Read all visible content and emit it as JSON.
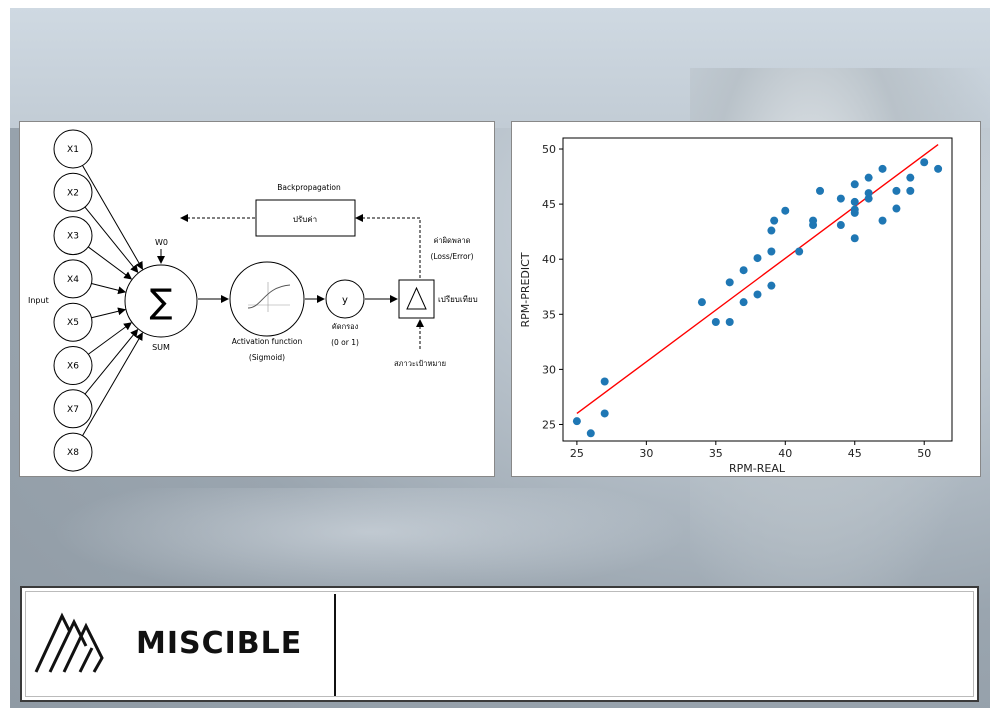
{
  "diagram": {
    "inputs": [
      "X1",
      "X2",
      "X3",
      "X4",
      "X5",
      "X6",
      "X7",
      "X8"
    ],
    "input_label": "Input",
    "bias_label": "W0",
    "sum_symbol": "∑",
    "sum_label": "SUM",
    "activation_label": "Activation function",
    "activation_sub": "(Sigmoid)",
    "output_symbol": "y",
    "output_label": "คัดกรอง",
    "output_sub": "(0 or 1)",
    "compare_label": "เปรียบเทียบ",
    "target_label": "สภาวะเป้าหมาย",
    "error_label": "ค่าผิดพลาด",
    "error_sub": "(Loss/Error)",
    "backprop_label": "Backpropagation",
    "adjust_label": "ปรับค่า"
  },
  "chart_data": {
    "type": "scatter",
    "xlabel": "RPM-REAL",
    "ylabel": "RPM-PREDICT",
    "xlim": [
      24,
      52
    ],
    "ylim": [
      23.5,
      51
    ],
    "xticks": [
      25,
      30,
      35,
      40,
      45,
      50
    ],
    "yticks": [
      25,
      30,
      35,
      40,
      45,
      50
    ],
    "point_color": "#1f77b4",
    "line_color": "#ff0000",
    "points": [
      [
        25,
        25.3
      ],
      [
        26,
        24.2
      ],
      [
        27,
        26.0
      ],
      [
        27,
        28.9
      ],
      [
        34,
        36.1
      ],
      [
        35,
        34.3
      ],
      [
        36,
        34.3
      ],
      [
        36,
        37.9
      ],
      [
        37,
        36.1
      ],
      [
        37,
        39.0
      ],
      [
        38,
        36.8
      ],
      [
        38,
        40.1
      ],
      [
        39,
        37.6
      ],
      [
        39,
        40.7
      ],
      [
        39,
        42.6
      ],
      [
        39.2,
        43.5
      ],
      [
        40,
        44.4
      ],
      [
        41,
        40.7
      ],
      [
        42,
        43.1
      ],
      [
        42,
        43.5
      ],
      [
        42.5,
        46.2
      ],
      [
        44,
        43.1
      ],
      [
        44,
        45.5
      ],
      [
        45,
        41.9
      ],
      [
        45,
        44.2
      ],
      [
        45,
        44.5
      ],
      [
        45,
        45.2
      ],
      [
        45,
        46.8
      ],
      [
        46,
        45.5
      ],
      [
        46,
        46.0
      ],
      [
        46,
        47.4
      ],
      [
        47,
        43.5
      ],
      [
        47,
        48.2
      ],
      [
        48,
        44.6
      ],
      [
        48,
        46.2
      ],
      [
        49,
        46.2
      ],
      [
        49,
        47.4
      ],
      [
        50,
        48.8
      ],
      [
        51,
        48.2
      ]
    ],
    "fit_line": [
      [
        25,
        26.0
      ],
      [
        51,
        50.4
      ]
    ]
  },
  "footer": {
    "brand": "MISCIBLE"
  }
}
